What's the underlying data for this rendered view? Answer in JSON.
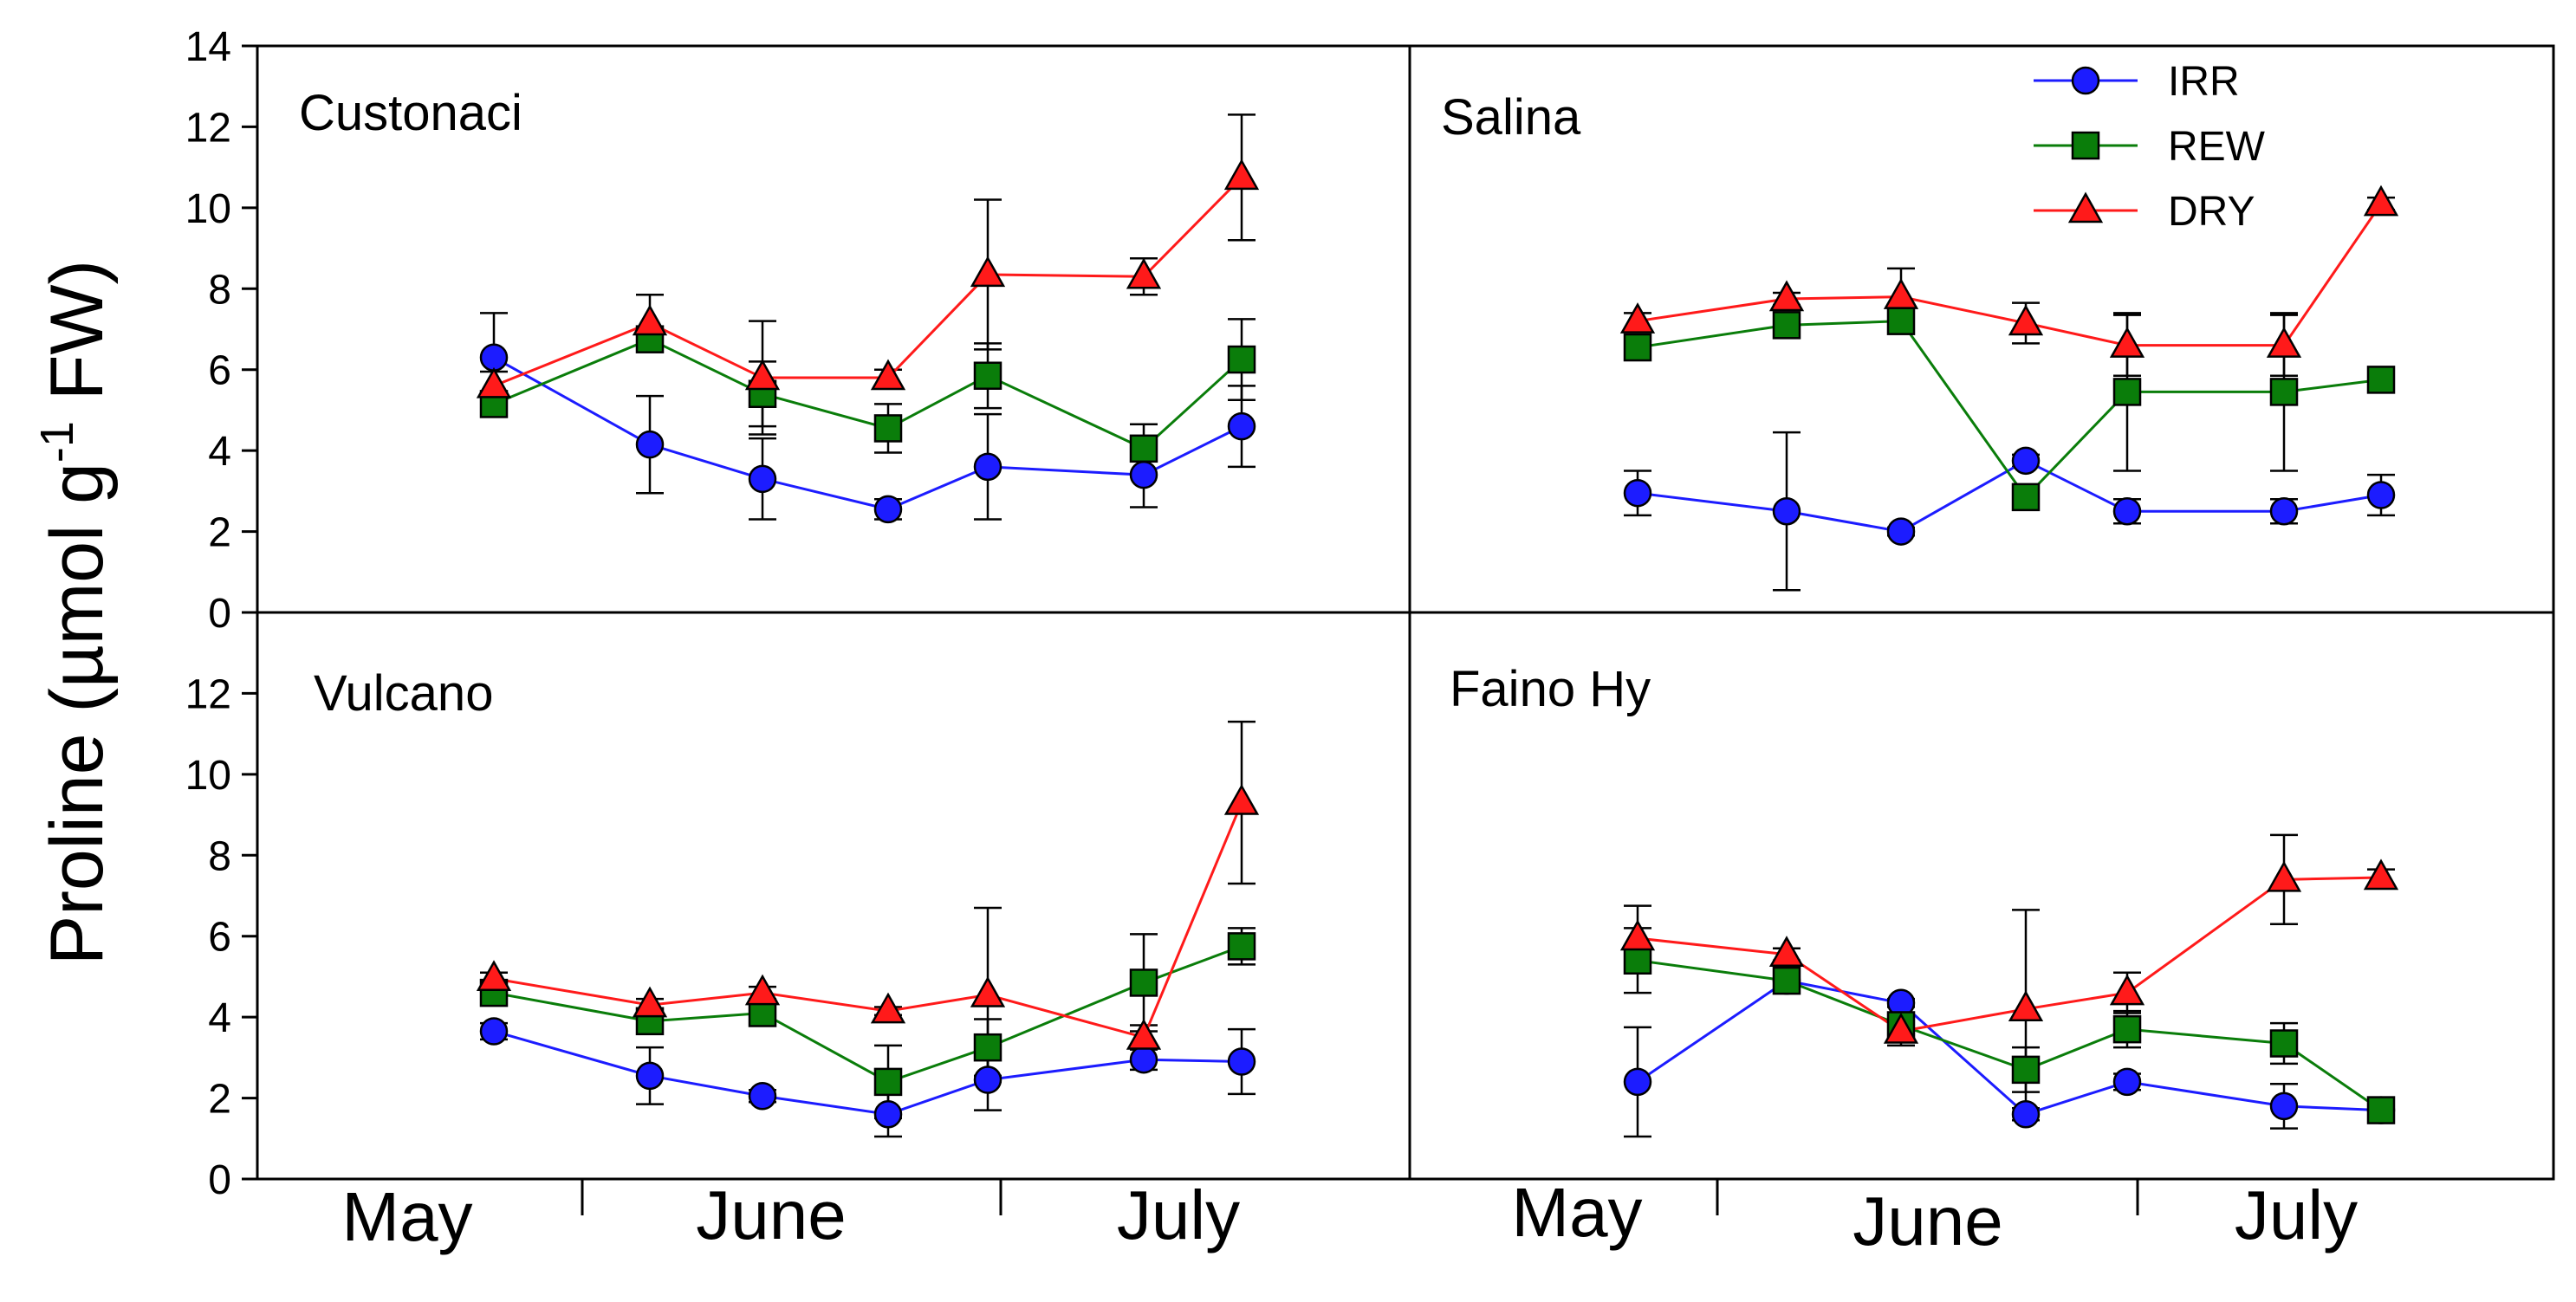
{
  "chart_data": {
    "type": "line",
    "ylabel": {
      "prefix": "Proline (µmol g",
      "superscript": "-1",
      "suffix": " FW)"
    },
    "ylim": [
      0,
      14
    ],
    "yticks": [
      0,
      2,
      4,
      6,
      8,
      10,
      12,
      14
    ],
    "months": [
      "May",
      "June",
      "July"
    ],
    "series_styles": [
      {
        "name": "IRR",
        "color": "#1c1cff",
        "marker": "circle"
      },
      {
        "name": "REW",
        "color": "#0a7d0a",
        "marker": "square"
      },
      {
        "name": "DRY",
        "color": "#ff1a1a",
        "marker": "triangle"
      }
    ],
    "legend_position": "top-right of Salina panel",
    "panels": [
      {
        "title": "Custonaci",
        "series": [
          {
            "name": "IRR",
            "values": [
              6.3,
              4.15,
              3.3,
              2.55,
              3.6,
              3.4,
              4.6
            ],
            "err": [
              1.1,
              1.2,
              1.0,
              0.25,
              1.3,
              0.8,
              1.0
            ]
          },
          {
            "name": "REW",
            "values": [
              5.15,
              6.75,
              5.4,
              4.55,
              5.85,
              4.05,
              6.25
            ],
            "err": [
              0.25,
              0.3,
              0.8,
              0.6,
              0.8,
              0.6,
              1.0
            ]
          },
          {
            "name": "DRY",
            "values": [
              5.6,
              7.15,
              5.8,
              5.8,
              8.35,
              8.3,
              10.75
            ],
            "err": [
              0.35,
              0.7,
              1.4,
              0.2,
              1.85,
              0.45,
              1.55
            ]
          }
        ]
      },
      {
        "title": "Salina",
        "series": [
          {
            "name": "IRR",
            "values": [
              2.95,
              2.5,
              2.0,
              3.75,
              2.5,
              2.5,
              2.9
            ],
            "err": [
              0.55,
              1.95,
              0.1,
              0.15,
              0.3,
              0.3,
              0.5
            ]
          },
          {
            "name": "REW",
            "values": [
              6.55,
              7.1,
              7.2,
              2.85,
              5.45,
              5.45,
              5.75
            ],
            "err": [
              0.2,
              0.2,
              0.3,
              0.15,
              1.95,
              1.95,
              0.3
            ]
          },
          {
            "name": "DRY",
            "values": [
              7.2,
              7.75,
              7.8,
              7.15,
              6.6,
              6.6,
              10.1
            ],
            "err": [
              0.2,
              0.15,
              0.7,
              0.5,
              0.75,
              0.75,
              0.15
            ]
          }
        ]
      },
      {
        "title": "Vulcano",
        "series": [
          {
            "name": "IRR",
            "values": [
              3.65,
              2.55,
              2.05,
              1.6,
              2.45,
              2.95,
              2.9
            ],
            "err": [
              0.2,
              0.7,
              0.15,
              0.55,
              0.75,
              0.25,
              0.8
            ]
          },
          {
            "name": "REW",
            "values": [
              4.6,
              3.9,
              4.1,
              2.4,
              3.25,
              4.85,
              5.75
            ],
            "err": [
              0.2,
              0.2,
              0.15,
              0.9,
              0.7,
              1.2,
              0.45
            ]
          },
          {
            "name": "DRY",
            "values": [
              4.95,
              4.3,
              4.6,
              4.15,
              4.55,
              3.5,
              9.3
            ],
            "err": [
              0.15,
              0.15,
              0.15,
              0.1,
              2.15,
              0.3,
              2.0
            ]
          }
        ]
      },
      {
        "title": "Faino Hy",
        "series": [
          {
            "name": "IRR",
            "values": [
              2.4,
              4.9,
              4.35,
              1.6,
              2.4,
              1.8,
              1.7
            ],
            "err": [
              1.35,
              0.1,
              0.1,
              0.15,
              0.2,
              0.55,
              0.1
            ]
          },
          {
            "name": "REW",
            "values": [
              5.4,
              4.9,
              3.8,
              2.7,
              3.7,
              3.35,
              1.7
            ],
            "err": [
              0.8,
              0.2,
              0.5,
              0.55,
              0.45,
              0.5,
              0.15
            ]
          },
          {
            "name": "DRY",
            "values": [
              5.95,
              5.55,
              3.65,
              4.2,
              4.6,
              7.4,
              7.45
            ],
            "err": [
              0.8,
              0.15,
              0.15,
              2.45,
              0.5,
              1.1,
              0.2
            ]
          }
        ]
      }
    ]
  }
}
